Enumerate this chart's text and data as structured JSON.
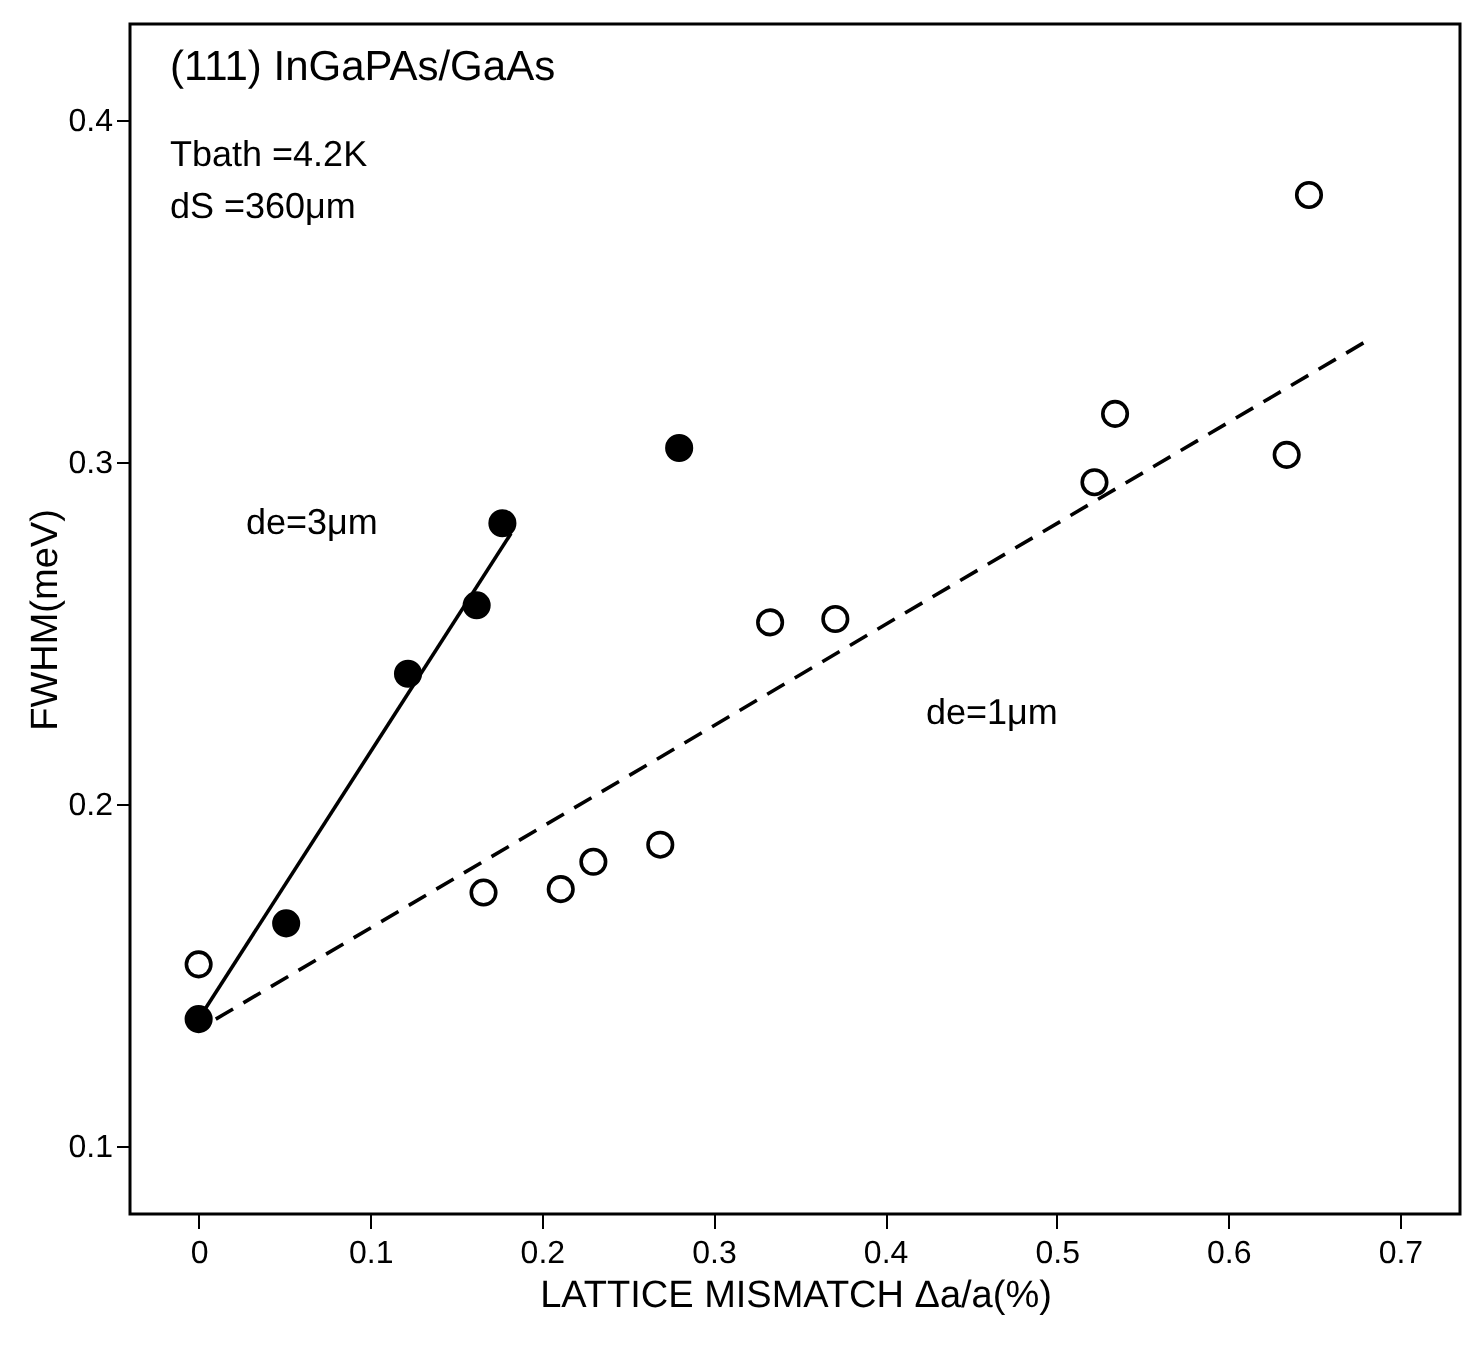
{
  "chart_data": {
    "type": "scatter",
    "xlabel": "LATTICE MISMATCH Δa/a(%)",
    "ylabel": "FWHM(meV)",
    "xlim": [
      -0.04,
      0.735
    ],
    "ylim": [
      0.08,
      0.428
    ],
    "xticks": [
      0,
      0.1,
      0.2,
      0.3,
      0.4,
      0.5,
      0.6,
      0.7
    ],
    "yticks": [
      0.1,
      0.2,
      0.3,
      0.4
    ],
    "grid": false,
    "series": [
      {
        "marker": "circle",
        "color": "#000000",
        "x": [
          0,
          0.051,
          0.122,
          0.162,
          0.177,
          0.28
        ],
        "values": [
          0.137,
          0.165,
          0.238,
          0.258,
          0.282,
          0.304
        ]
      },
      {
        "marker": "circle",
        "color": "#ffffff",
        "x": [
          0,
          0.166,
          0.211,
          0.23,
          0.269,
          0.333,
          0.371,
          0.522,
          0.534,
          0.634,
          0.647
        ],
        "values": [
          0.153,
          0.174,
          0.175,
          0.183,
          0.188,
          0.253,
          0.254,
          0.294,
          0.314,
          0.302,
          0.378
        ]
      },
      {
        "type": "line",
        "line_style": "solid",
        "color": "#000000",
        "x": [
          0,
          0.182
        ],
        "values": [
          0.137,
          0.279
        ]
      },
      {
        "type": "line",
        "line_style": "dashed",
        "color": "#000000",
        "x": [
          0.01,
          0.683
        ],
        "values": [
          0.137,
          0.336
        ]
      }
    ],
    "annotations": [
      "(111)  InGaPAs/GaAs",
      "Tbath =4.2K",
      "dS =360μm",
      "de=3μm",
      "de=1μm"
    ]
  }
}
